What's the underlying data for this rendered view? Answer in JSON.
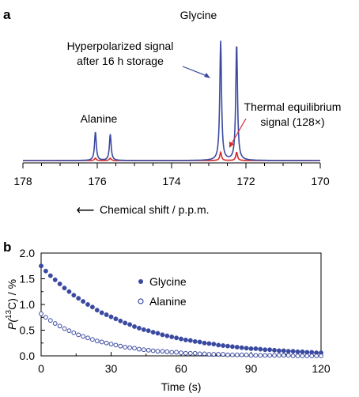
{
  "panels": {
    "a": {
      "letter": "a"
    },
    "b": {
      "letter": "b"
    }
  },
  "colors": {
    "hyperpolarized": "#3a4aa0",
    "thermal": "#d42a2a",
    "text": "#000000"
  },
  "chart_data": [
    {
      "type": "line",
      "panel": "a",
      "title": "",
      "xlabel": "Chemical shift / p.p.m.",
      "xlabel_arrow": "⟵",
      "ylabel": "",
      "xlim": [
        178,
        170
      ],
      "x_reversed": true,
      "xticks": [
        178,
        176,
        174,
        172,
        170
      ],
      "grid": false,
      "peaks_ppm": {
        "alanine": [
          176.05,
          175.65
        ],
        "glycine": [
          172.68,
          172.25
        ]
      },
      "series": [
        {
          "name": "Hyperpolarized signal after 16 h storage",
          "color": "#3a4aa0",
          "relative_peak_heights": [
            0.24,
            0.22,
            1.0,
            0.98
          ]
        },
        {
          "name": "Thermal equilibrium signal (128×)",
          "color": "#d42a2a",
          "relative_peak_heights": [
            0.02,
            0.02,
            0.07,
            0.07
          ]
        }
      ],
      "annotations": {
        "glycine": "Glycine",
        "alanine": "Alanine",
        "hyper_line1": "Hyperpolarized signal",
        "hyper_line2": "after 16 h storage",
        "thermal_line1": "Thermal equilibrium",
        "thermal_line2": "signal (128×)"
      }
    },
    {
      "type": "scatter",
      "panel": "b",
      "title": "",
      "xlabel": "Time (s)",
      "ylabel_prefix": "P(",
      "ylabel_sup": "13",
      "ylabel_suffix": "C) / %",
      "xlim": [
        0,
        120
      ],
      "ylim": [
        0,
        2.0
      ],
      "xticks": [
        0,
        30,
        60,
        90,
        120
      ],
      "yticks": [
        0.0,
        0.5,
        1.0,
        1.5,
        2.0
      ],
      "ytick_labels": [
        "0.0",
        "0.5",
        "1.0",
        "1.5",
        "2.0"
      ],
      "grid": false,
      "legend_position": "upper middle",
      "sample_interval_s": 2,
      "series": [
        {
          "name": "Glycine",
          "marker": "filled-circle",
          "color": "#3a4aa0",
          "x": [
            0,
            2,
            4,
            6,
            8,
            10,
            12,
            14,
            16,
            18,
            20,
            22,
            24,
            26,
            28,
            30,
            32,
            34,
            36,
            38,
            40,
            42,
            44,
            46,
            48,
            50,
            52,
            54,
            56,
            58,
            60,
            62,
            64,
            66,
            68,
            70,
            72,
            74,
            76,
            78,
            80,
            82,
            84,
            86,
            88,
            90,
            92,
            94,
            96,
            98,
            100,
            102,
            104,
            106,
            108,
            110,
            112,
            114,
            116,
            118,
            120
          ],
          "y": [
            1.75,
            1.65,
            1.56,
            1.48,
            1.4,
            1.32,
            1.25,
            1.18,
            1.12,
            1.06,
            1.0,
            0.95,
            0.89,
            0.84,
            0.8,
            0.76,
            0.72,
            0.68,
            0.64,
            0.61,
            0.57,
            0.54,
            0.51,
            0.49,
            0.46,
            0.44,
            0.41,
            0.39,
            0.37,
            0.35,
            0.33,
            0.31,
            0.3,
            0.28,
            0.27,
            0.25,
            0.24,
            0.23,
            0.21,
            0.2,
            0.19,
            0.18,
            0.17,
            0.16,
            0.15,
            0.14,
            0.14,
            0.13,
            0.12,
            0.12,
            0.11,
            0.1,
            0.1,
            0.09,
            0.09,
            0.08,
            0.08,
            0.07,
            0.07,
            0.06,
            0.06
          ]
        },
        {
          "name": "Alanine",
          "marker": "open-circle",
          "color": "#3a4aa0",
          "x": [
            0,
            2,
            4,
            6,
            8,
            10,
            12,
            14,
            16,
            18,
            20,
            22,
            24,
            26,
            28,
            30,
            32,
            34,
            36,
            38,
            40,
            42,
            44,
            46,
            48,
            50,
            52,
            54,
            56,
            58,
            60,
            62,
            64,
            66,
            68,
            70,
            72,
            74,
            76,
            78,
            80,
            82,
            84,
            86,
            88,
            90,
            92,
            94,
            96,
            98,
            100,
            102,
            104,
            106,
            108,
            110,
            112,
            114,
            116,
            118,
            120
          ],
          "y": [
            0.82,
            0.75,
            0.69,
            0.63,
            0.58,
            0.53,
            0.49,
            0.45,
            0.41,
            0.38,
            0.35,
            0.32,
            0.29,
            0.27,
            0.25,
            0.23,
            0.21,
            0.19,
            0.17,
            0.16,
            0.15,
            0.13,
            0.12,
            0.11,
            0.1,
            0.09,
            0.09,
            0.08,
            0.07,
            0.07,
            0.06,
            0.05,
            0.05,
            0.05,
            0.04,
            0.04,
            0.03,
            0.03,
            0.03,
            0.03,
            0.02,
            0.02,
            0.02,
            0.02,
            0.02,
            0.01,
            0.01,
            0.01,
            0.01,
            0.01,
            0.01,
            0.01,
            0.01,
            0.01,
            0.0,
            0.0,
            0.0,
            0.0,
            0.0,
            0.0,
            0.0
          ]
        }
      ]
    }
  ]
}
